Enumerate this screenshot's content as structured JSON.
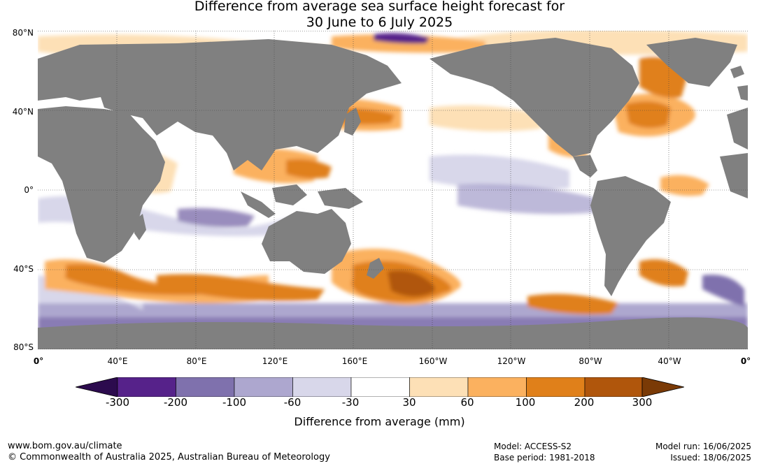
{
  "title": {
    "line1": "Difference from average sea surface height forecast for",
    "line2": "30 June to 6 July 2025"
  },
  "map": {
    "lat_labels": [
      "80°N",
      "40°N",
      "0°",
      "40°S",
      "80°S"
    ],
    "lon_labels": [
      "0°",
      "40°E",
      "80°E",
      "120°E",
      "160°E",
      "160°W",
      "120°W",
      "80°W",
      "40°W",
      "0°"
    ],
    "colors": {
      "land": "#808080",
      "ocean_neutral": "#ffffff",
      "grid": "#444444"
    }
  },
  "colorbar": {
    "tick_labels": [
      "-300",
      "-200",
      "-100",
      "-60",
      "-30",
      "30",
      "60",
      "100",
      "200",
      "300"
    ],
    "colors": [
      "#2c0b4e",
      "#56228a",
      "#7f71ad",
      "#ada7cf",
      "#d8d7ea",
      "#ffffff",
      "#fde0b6",
      "#fbb15f",
      "#e0801a",
      "#b0560c",
      "#7a3a06"
    ],
    "label": "Difference from average (mm)"
  },
  "footer": {
    "website": "www.bom.gov.au/climate",
    "copyright": "© Commonwealth of Australia 2025, Australian Bureau of Meteorology",
    "model": "Model: ACCESS-S2",
    "base_period": "Base period: 1981-2018",
    "model_run": "Model run: 16/06/2025",
    "issued": "Issued: 18/06/2025"
  }
}
